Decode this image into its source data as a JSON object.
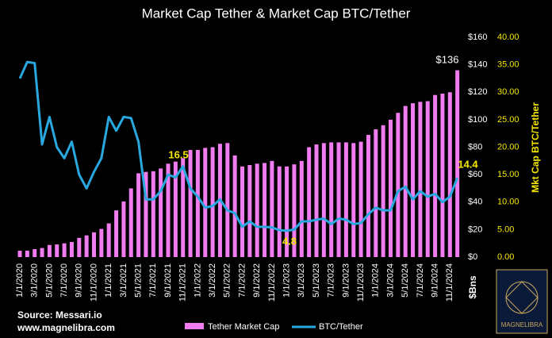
{
  "chart_data": {
    "type": "bar",
    "title": "Market Cap Tether & Market Cap BTC/Tether",
    "categories": [
      "1/1/2020",
      null,
      "3/1/2020",
      null,
      "5/1/2020",
      null,
      "7/1/2020",
      null,
      "9/1/2020",
      null,
      "11/1/2020",
      null,
      "1/1/2021",
      null,
      "3/1/2021",
      null,
      "5/1/2021",
      null,
      "7/1/2021",
      null,
      "9/1/2021",
      null,
      "11/1/2021",
      null,
      "1/1/2022",
      null,
      "3/1/2022",
      null,
      "5/1/2022",
      null,
      "7/1/2022",
      null,
      "9/1/2022",
      null,
      "11/1/2022",
      null,
      "1/1/2023",
      null,
      "3/1/2023",
      null,
      "5/1/2023",
      null,
      "7/1/2023",
      null,
      "9/1/2023",
      null,
      "11/1/2023",
      null,
      "1/1/2024",
      null,
      "3/1/2024",
      null,
      "5/1/2024",
      null,
      "7/1/2024",
      null,
      "9/1/2024",
      null,
      "11/1/2024",
      null
    ],
    "series": [
      {
        "name": "Tether Market Cap",
        "color": "#f07cf0",
        "values": [
          4.6,
          4.7,
          5.8,
          6.6,
          8.8,
          9.2,
          10,
          11,
          14,
          15.8,
          18,
          20.5,
          24.5,
          34,
          40.5,
          50,
          61,
          62,
          62.5,
          64.5,
          68,
          69.5,
          72,
          78,
          78,
          79.5,
          80,
          82.5,
          83,
          74,
          66,
          67,
          68,
          68.5,
          70,
          66,
          66,
          67.5,
          70,
          80,
          82,
          83,
          83.5,
          83.5,
          83.5,
          83,
          84,
          89,
          93,
          96,
          100,
          105,
          110,
          112,
          113,
          113.5,
          118,
          119,
          120,
          136
        ]
      },
      {
        "name": "BTC/Tether",
        "color": "#29a8e0",
        "axis": "y2",
        "values": [
          32.5,
          35.5,
          35.3,
          20.5,
          25.5,
          20,
          18,
          21,
          15,
          12.5,
          15.5,
          18,
          25.5,
          23,
          25.5,
          25.3,
          21,
          10.5,
          10.5,
          12,
          15,
          14.5,
          16.5,
          12.5,
          11,
          9,
          9.3,
          10.5,
          8.5,
          8,
          5.5,
          6.5,
          5.5,
          5.5,
          5.4,
          4.9,
          4.8,
          5,
          6.5,
          6.5,
          6.8,
          7,
          6,
          7,
          6.8,
          6,
          6.2,
          7.8,
          9,
          8.5,
          8.5,
          12,
          12.8,
          10.5,
          12,
          11,
          11.5,
          10,
          11,
          14.4
        ]
      }
    ],
    "ylim": [
      0,
      160
    ],
    "yticks": [
      {
        "value": 0,
        "label": "$0"
      },
      {
        "value": 20,
        "label": "$20"
      },
      {
        "value": 40,
        "label": "$40"
      },
      {
        "value": 60,
        "label": "$60"
      },
      {
        "value": 80,
        "label": "$80"
      },
      {
        "value": 100,
        "label": "$100"
      },
      {
        "value": 120,
        "label": "$120"
      },
      {
        "value": 140,
        "label": "$140"
      },
      {
        "value": 160,
        "label": "$160"
      }
    ],
    "y2lim": [
      0,
      40
    ],
    "y2ticks": [
      {
        "value": 0,
        "label": "0.00"
      },
      {
        "value": 5,
        "label": "5.00"
      },
      {
        "value": 10,
        "label": "10.00"
      },
      {
        "value": 15,
        "label": "15.00"
      },
      {
        "value": 20,
        "label": "20.00"
      },
      {
        "value": 25,
        "label": "25.00"
      },
      {
        "value": 30,
        "label": "30.00"
      },
      {
        "value": 35,
        "label": "35.00"
      },
      {
        "value": 40,
        "label": "40.00"
      }
    ],
    "y_label": "$Bns",
    "y2_label": "Mkt Cap BTC/Tether",
    "annotations": [
      "$136",
      "16.5",
      "4.8",
      "14.4"
    ],
    "source": "Source: Messari.io",
    "website": "www.magnelibra.com",
    "logo_text": "MAGNELIBRA"
  }
}
